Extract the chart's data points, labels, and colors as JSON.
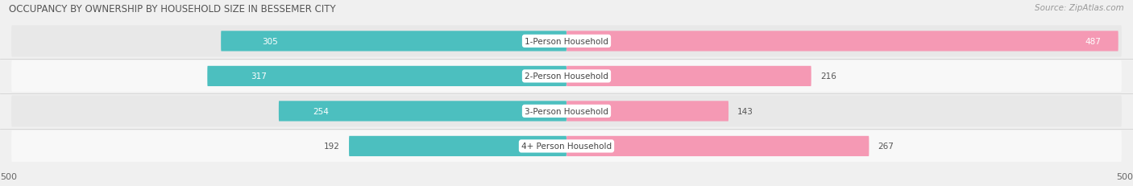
{
  "title": "OCCUPANCY BY OWNERSHIP BY HOUSEHOLD SIZE IN BESSEMER CITY",
  "source": "Source: ZipAtlas.com",
  "categories": [
    "1-Person Household",
    "2-Person Household",
    "3-Person Household",
    "4+ Person Household"
  ],
  "owner_values": [
    305,
    317,
    254,
    192
  ],
  "renter_values": [
    487,
    216,
    143,
    267
  ],
  "owner_color": "#4CBFBF",
  "renter_color": "#F599B4",
  "axis_max": 500,
  "background_color": "#f0f0f0",
  "row_colors": [
    "#e8e8e8",
    "#f8f8f8",
    "#e8e8e8",
    "#f8f8f8"
  ],
  "title_fontsize": 8.5,
  "label_fontsize": 7.5,
  "value_fontsize": 7.5,
  "tick_fontsize": 8,
  "source_fontsize": 7.5,
  "legend_fontsize": 8
}
